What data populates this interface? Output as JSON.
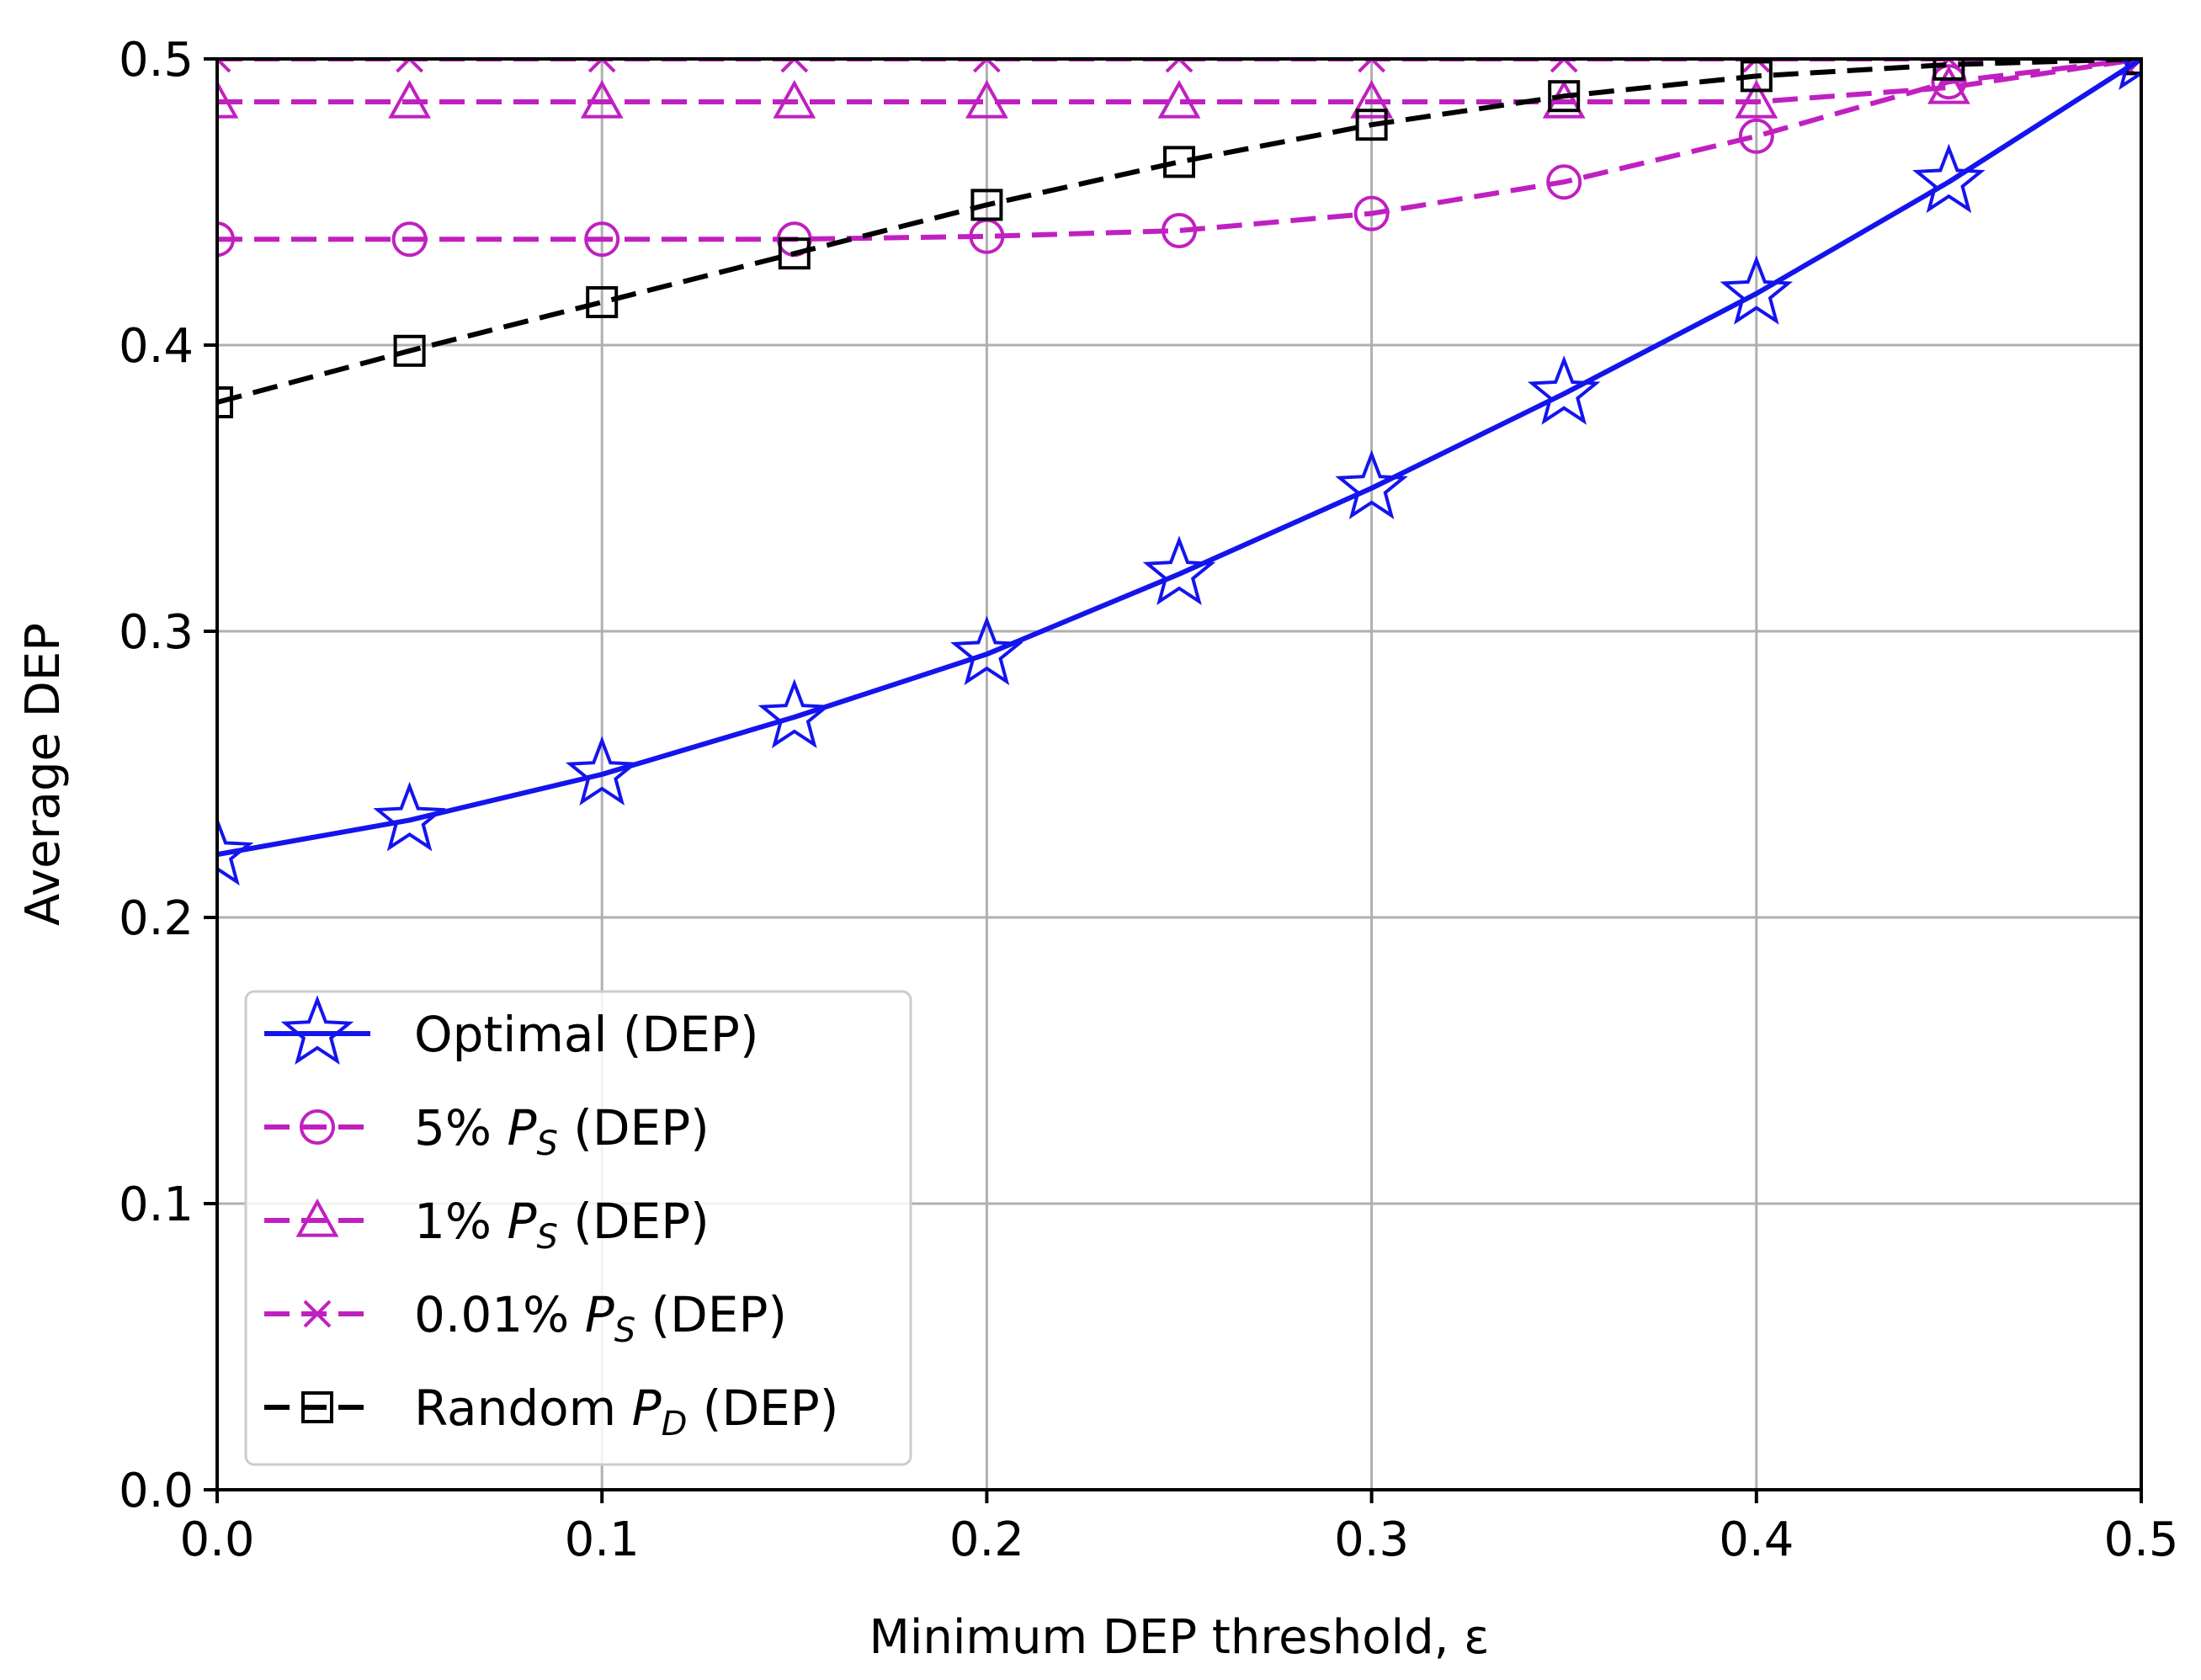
{
  "chart_data": {
    "type": "line",
    "title": "",
    "xlabel": "Minimum DEP threshold, ε",
    "ylabel": "Average DEP",
    "xlim": [
      0.0,
      0.5
    ],
    "ylim": [
      0.0,
      0.5
    ],
    "grid": true,
    "legend_position": "lower-left",
    "x_ticks": [
      0.0,
      0.1,
      0.2,
      0.3,
      0.4,
      0.5
    ],
    "y_ticks": [
      0.0,
      0.1,
      0.2,
      0.3,
      0.4,
      0.5
    ],
    "x_tick_labels": [
      "0.0",
      "0.1",
      "0.2",
      "0.3",
      "0.4",
      "0.5"
    ],
    "y_tick_labels": [
      "0.0",
      "0.1",
      "0.2",
      "0.3",
      "0.4",
      "0.5"
    ],
    "x": [
      0.0,
      0.05,
      0.1,
      0.15,
      0.2,
      0.25,
      0.3,
      0.35,
      0.4,
      0.45,
      0.5
    ],
    "series": [
      {
        "name": "Optimal (DEP)",
        "legend_main": "Optimal (DEP)",
        "legend_sub": "",
        "legend_tail": "",
        "color": "#1414ee",
        "line_style": "solid",
        "marker": "star",
        "values": [
          0.222,
          0.234,
          0.25,
          0.27,
          0.292,
          0.32,
          0.35,
          0.383,
          0.418,
          0.457,
          0.5
        ]
      },
      {
        "name": "5% P_S (DEP)",
        "legend_main": "5% P",
        "legend_sub": "S",
        "legend_tail": " (DEP)",
        "color": "#c020c0",
        "line_style": "dashed",
        "marker": "circle",
        "values": [
          0.437,
          0.437,
          0.437,
          0.437,
          0.438,
          0.44,
          0.446,
          0.457,
          0.473,
          0.492,
          0.5
        ]
      },
      {
        "name": "1% P_S (DEP)",
        "legend_main": "1% P",
        "legend_sub": "S",
        "legend_tail": " (DEP)",
        "color": "#c020c0",
        "line_style": "dashed",
        "marker": "triangle",
        "values": [
          0.485,
          0.485,
          0.485,
          0.485,
          0.485,
          0.485,
          0.485,
          0.485,
          0.485,
          0.49,
          0.5
        ]
      },
      {
        "name": "0.01% P_S (DEP)",
        "legend_main": "0.01% P",
        "legend_sub": "S",
        "legend_tail": " (DEP)",
        "color": "#c020c0",
        "line_style": "dashed",
        "marker": "x",
        "values": [
          0.5,
          0.5,
          0.5,
          0.5,
          0.5,
          0.5,
          0.5,
          0.5,
          0.5,
          0.5,
          0.5
        ]
      },
      {
        "name": "Random P_D (DEP)",
        "legend_main": "Random P",
        "legend_sub": "D",
        "legend_tail": " (DEP)",
        "color": "#000000",
        "line_style": "dashed",
        "marker": "square",
        "values": [
          0.38,
          0.398,
          0.415,
          0.432,
          0.449,
          0.464,
          0.477,
          0.487,
          0.494,
          0.498,
          0.5
        ]
      }
    ]
  }
}
